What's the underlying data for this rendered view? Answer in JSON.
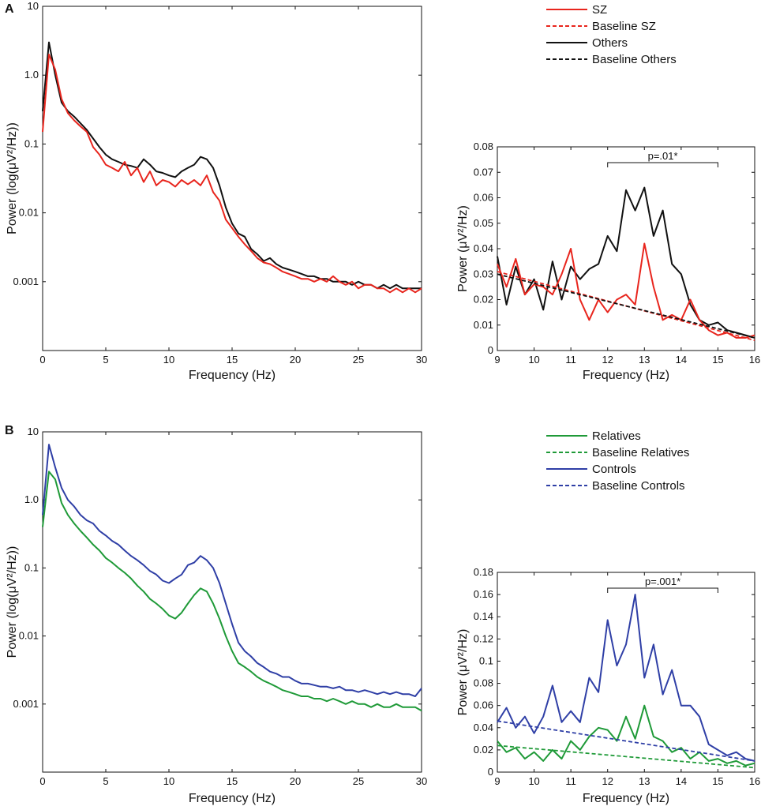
{
  "colors": {
    "sz": "#e8251d",
    "others": "#111111",
    "relatives": "#1f9a38",
    "controls": "#2f3fa6"
  },
  "chart_data": [
    {
      "panel": "A",
      "type": "line",
      "scale": "log",
      "xlabel": "Frequency (Hz)",
      "ylabel": "Power (log(μV²/Hz))",
      "xlim": [
        0,
        30
      ],
      "ylim": [
        0.0001,
        10
      ],
      "xticks": [
        "0",
        "5",
        "10",
        "15",
        "20",
        "25",
        "30"
      ],
      "yticks": [
        "10",
        "1.0",
        "0.1",
        "0.01",
        "0.001"
      ],
      "series": [
        {
          "name": "Others",
          "color_key": "others",
          "x": [
            0,
            0.5,
            1,
            1.5,
            2,
            2.5,
            3,
            3.5,
            4,
            4.5,
            5,
            5.5,
            6,
            6.5,
            7,
            7.5,
            8,
            8.5,
            9,
            9.5,
            10,
            10.5,
            11,
            11.5,
            12,
            12.5,
            13,
            13.5,
            14,
            14.5,
            15,
            15.5,
            16,
            16.5,
            17,
            17.5,
            18,
            18.5,
            19,
            19.5,
            20,
            20.5,
            21,
            21.5,
            22,
            22.5,
            23,
            23.5,
            24,
            24.5,
            25,
            25.5,
            26,
            26.5,
            27,
            27.5,
            28,
            28.5,
            29,
            29.5,
            30
          ],
          "values": [
            0.3,
            3.0,
            1.0,
            0.4,
            0.3,
            0.25,
            0.2,
            0.16,
            0.12,
            0.09,
            0.07,
            0.06,
            0.055,
            0.05,
            0.048,
            0.045,
            0.06,
            0.05,
            0.04,
            0.038,
            0.035,
            0.033,
            0.04,
            0.045,
            0.05,
            0.065,
            0.06,
            0.045,
            0.025,
            0.012,
            0.007,
            0.005,
            0.0045,
            0.003,
            0.0025,
            0.002,
            0.0022,
            0.0018,
            0.0016,
            0.0015,
            0.0014,
            0.0013,
            0.0012,
            0.0012,
            0.0011,
            0.0011,
            0.001,
            0.001,
            0.001,
            0.0009,
            0.001,
            0.0009,
            0.0009,
            0.0008,
            0.0009,
            0.0008,
            0.0009,
            0.0008,
            0.0008,
            0.0008,
            0.0008
          ]
        },
        {
          "name": "SZ",
          "color_key": "sz",
          "x": [
            0,
            0.5,
            1,
            1.5,
            2,
            2.5,
            3,
            3.5,
            4,
            4.5,
            5,
            5.5,
            6,
            6.5,
            7,
            7.5,
            8,
            8.5,
            9,
            9.5,
            10,
            10.5,
            11,
            11.5,
            12,
            12.5,
            13,
            13.5,
            14,
            14.5,
            15,
            15.5,
            16,
            16.5,
            17,
            17.5,
            18,
            18.5,
            19,
            19.5,
            20,
            20.5,
            21,
            21.5,
            22,
            22.5,
            23,
            23.5,
            24,
            24.5,
            25,
            25.5,
            26,
            26.5,
            27,
            27.5,
            28,
            28.5,
            29,
            29.5,
            30
          ],
          "values": [
            0.15,
            2.0,
            1.2,
            0.45,
            0.28,
            0.22,
            0.18,
            0.15,
            0.09,
            0.07,
            0.05,
            0.045,
            0.04,
            0.055,
            0.035,
            0.045,
            0.028,
            0.04,
            0.025,
            0.03,
            0.028,
            0.024,
            0.03,
            0.026,
            0.03,
            0.025,
            0.035,
            0.02,
            0.015,
            0.008,
            0.006,
            0.0045,
            0.0035,
            0.0028,
            0.0022,
            0.0019,
            0.0018,
            0.0016,
            0.0014,
            0.0013,
            0.0012,
            0.0011,
            0.0011,
            0.001,
            0.0011,
            0.001,
            0.0012,
            0.001,
            0.0009,
            0.001,
            0.0008,
            0.0009,
            0.0009,
            0.0008,
            0.0008,
            0.0007,
            0.0008,
            0.0007,
            0.0008,
            0.0007,
            0.0008
          ]
        }
      ]
    },
    {
      "panel": "A-inset",
      "type": "line",
      "xlabel": "Frequency (Hz)",
      "ylabel": "Power (μV²/Hz)",
      "xlim": [
        9,
        16
      ],
      "ylim": [
        0,
        0.08
      ],
      "xticks": [
        "9",
        "10",
        "11",
        "12",
        "13",
        "14",
        "15",
        "16"
      ],
      "yticks": [
        "0",
        "0.01",
        "0.02",
        "0.03",
        "0.04",
        "0.05",
        "0.06",
        "0.07",
        "0.08"
      ],
      "annotation": "p=.01*",
      "bracket": [
        12,
        15
      ],
      "series": [
        {
          "name": "Others",
          "color_key": "others",
          "x": [
            9,
            9.25,
            9.5,
            9.75,
            10,
            10.25,
            10.5,
            10.75,
            11,
            11.25,
            11.5,
            11.75,
            12,
            12.25,
            12.5,
            12.75,
            13,
            13.25,
            13.5,
            13.75,
            14,
            14.25,
            14.5,
            14.75,
            15,
            15.25,
            15.5,
            15.75,
            16
          ],
          "values": [
            0.037,
            0.018,
            0.033,
            0.022,
            0.028,
            0.016,
            0.035,
            0.02,
            0.033,
            0.028,
            0.032,
            0.034,
            0.045,
            0.039,
            0.063,
            0.055,
            0.064,
            0.045,
            0.055,
            0.034,
            0.03,
            0.018,
            0.012,
            0.01,
            0.011,
            0.008,
            0.007,
            0.006,
            0.005
          ]
        },
        {
          "name": "SZ",
          "color_key": "sz",
          "x": [
            9,
            9.25,
            9.5,
            9.75,
            10,
            10.25,
            10.5,
            10.75,
            11,
            11.25,
            11.5,
            11.75,
            12,
            12.25,
            12.5,
            12.75,
            13,
            13.25,
            13.5,
            13.75,
            14,
            14.25,
            14.5,
            14.75,
            15,
            15.25,
            15.5,
            15.75,
            16
          ],
          "values": [
            0.034,
            0.025,
            0.036,
            0.022,
            0.026,
            0.025,
            0.022,
            0.03,
            0.04,
            0.02,
            0.012,
            0.02,
            0.015,
            0.02,
            0.022,
            0.018,
            0.042,
            0.025,
            0.012,
            0.014,
            0.012,
            0.02,
            0.012,
            0.008,
            0.006,
            0.007,
            0.005,
            0.005,
            0.006
          ]
        },
        {
          "name": "Baseline SZ",
          "color_key": "sz",
          "dashed": true,
          "x": [
            9,
            16
          ],
          "values": [
            0.031,
            0.004
          ]
        },
        {
          "name": "Baseline Others",
          "color_key": "others",
          "dashed": true,
          "x": [
            9,
            16
          ],
          "values": [
            0.03,
            0.005
          ]
        }
      ]
    },
    {
      "panel": "B",
      "type": "line",
      "scale": "log",
      "xlabel": "Frequency (Hz)",
      "ylabel": "Power (log(μV²/Hz))",
      "xlim": [
        0,
        30
      ],
      "ylim": [
        0.0001,
        10
      ],
      "xticks": [
        "0",
        "5",
        "10",
        "15",
        "20",
        "25",
        "30"
      ],
      "yticks": [
        "10",
        "1.0",
        "0.1",
        "0.01",
        "0.001"
      ],
      "series": [
        {
          "name": "Controls",
          "color_key": "controls",
          "x": [
            0,
            0.5,
            1,
            1.5,
            2,
            2.5,
            3,
            3.5,
            4,
            4.5,
            5,
            5.5,
            6,
            6.5,
            7,
            7.5,
            8,
            8.5,
            9,
            9.5,
            10,
            10.5,
            11,
            11.5,
            12,
            12.5,
            13,
            13.5,
            14,
            14.5,
            15,
            15.5,
            16,
            16.5,
            17,
            17.5,
            18,
            18.5,
            19,
            19.5,
            20,
            20.5,
            21,
            21.5,
            22,
            22.5,
            23,
            23.5,
            24,
            24.5,
            25,
            25.5,
            26,
            26.5,
            27,
            27.5,
            28,
            28.5,
            29,
            29.5,
            30
          ],
          "values": [
            0.6,
            6.5,
            3.0,
            1.5,
            1.0,
            0.8,
            0.6,
            0.5,
            0.45,
            0.35,
            0.3,
            0.25,
            0.22,
            0.18,
            0.15,
            0.13,
            0.11,
            0.09,
            0.08,
            0.065,
            0.06,
            0.07,
            0.08,
            0.11,
            0.12,
            0.15,
            0.13,
            0.1,
            0.06,
            0.03,
            0.015,
            0.008,
            0.006,
            0.005,
            0.004,
            0.0035,
            0.003,
            0.0028,
            0.0025,
            0.0025,
            0.0022,
            0.002,
            0.002,
            0.0019,
            0.0018,
            0.0018,
            0.0017,
            0.0018,
            0.0016,
            0.0016,
            0.0015,
            0.0016,
            0.0015,
            0.0014,
            0.0015,
            0.0014,
            0.0015,
            0.0014,
            0.0014,
            0.0013,
            0.0017
          ]
        },
        {
          "name": "Relatives",
          "color_key": "relatives",
          "x": [
            0,
            0.5,
            1,
            1.5,
            2,
            2.5,
            3,
            3.5,
            4,
            4.5,
            5,
            5.5,
            6,
            6.5,
            7,
            7.5,
            8,
            8.5,
            9,
            9.5,
            10,
            10.5,
            11,
            11.5,
            12,
            12.5,
            13,
            13.5,
            14,
            14.5,
            15,
            15.5,
            16,
            16.5,
            17,
            17.5,
            18,
            18.5,
            19,
            19.5,
            20,
            20.5,
            21,
            21.5,
            22,
            22.5,
            23,
            23.5,
            24,
            24.5,
            25,
            25.5,
            26,
            26.5,
            27,
            27.5,
            28,
            28.5,
            29,
            29.5,
            30
          ],
          "values": [
            0.4,
            2.6,
            2.0,
            0.9,
            0.6,
            0.45,
            0.35,
            0.28,
            0.22,
            0.18,
            0.14,
            0.12,
            0.1,
            0.085,
            0.07,
            0.055,
            0.045,
            0.035,
            0.03,
            0.025,
            0.02,
            0.018,
            0.022,
            0.03,
            0.04,
            0.05,
            0.045,
            0.03,
            0.018,
            0.01,
            0.006,
            0.004,
            0.0035,
            0.003,
            0.0025,
            0.0022,
            0.002,
            0.0018,
            0.0016,
            0.0015,
            0.0014,
            0.0013,
            0.0013,
            0.0012,
            0.0012,
            0.0011,
            0.0012,
            0.0011,
            0.001,
            0.0011,
            0.001,
            0.001,
            0.0009,
            0.001,
            0.0009,
            0.0009,
            0.001,
            0.0009,
            0.0009,
            0.0009,
            0.0008
          ]
        }
      ]
    },
    {
      "panel": "B-inset",
      "type": "line",
      "xlabel": "Frequency (Hz)",
      "ylabel": "Power (μV²/Hz)",
      "xlim": [
        9,
        16
      ],
      "ylim": [
        0,
        0.18
      ],
      "xticks": [
        "9",
        "10",
        "11",
        "12",
        "13",
        "14",
        "15",
        "16"
      ],
      "yticks": [
        "0",
        "0.02",
        "0.04",
        "0.06",
        "0.08",
        "0.1",
        "0.12",
        "0.14",
        "0.16",
        "0.18"
      ],
      "annotation": "p=.001*",
      "bracket": [
        12,
        15
      ],
      "series": [
        {
          "name": "Controls",
          "color_key": "controls",
          "x": [
            9,
            9.25,
            9.5,
            9.75,
            10,
            10.25,
            10.5,
            10.75,
            11,
            11.25,
            11.5,
            11.75,
            12,
            12.25,
            12.5,
            12.75,
            13,
            13.25,
            13.5,
            13.75,
            14,
            14.25,
            14.5,
            14.75,
            15,
            15.25,
            15.5,
            15.75,
            16
          ],
          "values": [
            0.045,
            0.058,
            0.04,
            0.05,
            0.035,
            0.05,
            0.078,
            0.045,
            0.055,
            0.045,
            0.085,
            0.072,
            0.137,
            0.096,
            0.115,
            0.16,
            0.085,
            0.115,
            0.07,
            0.092,
            0.06,
            0.06,
            0.05,
            0.025,
            0.02,
            0.015,
            0.018,
            0.012,
            0.01
          ]
        },
        {
          "name": "Relatives",
          "color_key": "relatives",
          "x": [
            9,
            9.25,
            9.5,
            9.75,
            10,
            10.25,
            10.5,
            10.75,
            11,
            11.25,
            11.5,
            11.75,
            12,
            12.25,
            12.5,
            12.75,
            13,
            13.25,
            13.5,
            13.75,
            14,
            14.25,
            14.5,
            14.75,
            15,
            15.25,
            15.5,
            15.75,
            16
          ],
          "values": [
            0.028,
            0.018,
            0.022,
            0.012,
            0.018,
            0.01,
            0.02,
            0.012,
            0.028,
            0.02,
            0.032,
            0.04,
            0.038,
            0.028,
            0.05,
            0.03,
            0.06,
            0.032,
            0.028,
            0.018,
            0.022,
            0.012,
            0.018,
            0.01,
            0.012,
            0.008,
            0.01,
            0.006,
            0.008
          ]
        },
        {
          "name": "Baseline Relatives",
          "color_key": "relatives",
          "dashed": true,
          "x": [
            9,
            16
          ],
          "values": [
            0.024,
            0.004
          ]
        },
        {
          "name": "Baseline Controls",
          "color_key": "controls",
          "dashed": true,
          "x": [
            9,
            16
          ],
          "values": [
            0.046,
            0.01
          ]
        }
      ]
    }
  ],
  "panels": {
    "a": "A",
    "b": "B"
  },
  "legends": {
    "a": [
      {
        "label": "SZ",
        "color_key": "sz",
        "dashed": false
      },
      {
        "label": "Baseline SZ",
        "color_key": "sz",
        "dashed": true
      },
      {
        "label": "Others",
        "color_key": "others",
        "dashed": false
      },
      {
        "label": "Baseline Others",
        "color_key": "others",
        "dashed": true
      }
    ],
    "b": [
      {
        "label": "Relatives",
        "color_key": "relatives",
        "dashed": false
      },
      {
        "label": "Baseline Relatives",
        "color_key": "relatives",
        "dashed": true
      },
      {
        "label": "Controls",
        "color_key": "controls",
        "dashed": false
      },
      {
        "label": "Baseline Controls",
        "color_key": "controls",
        "dashed": true
      }
    ]
  }
}
